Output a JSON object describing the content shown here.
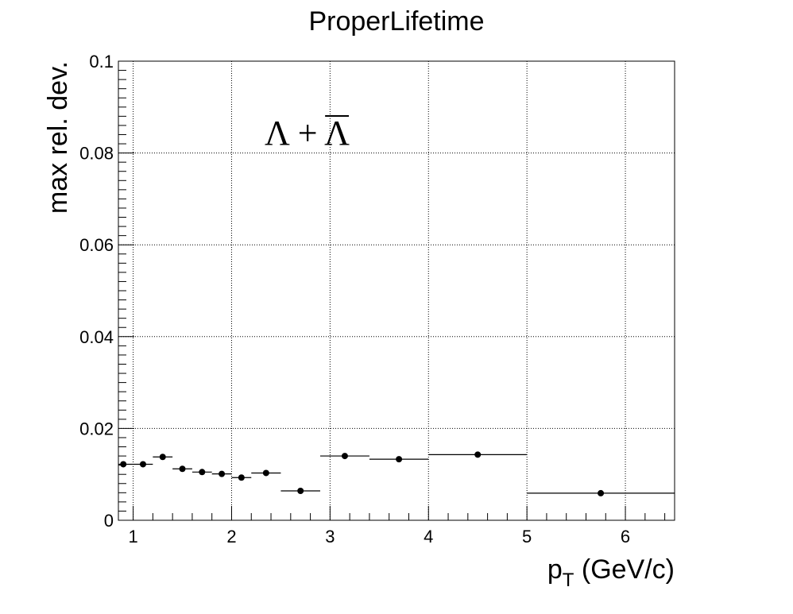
{
  "chart_data": {
    "type": "scatter",
    "title": "ProperLifetime",
    "xlabel_main": "p",
    "xlabel_sub": "T",
    "xlabel_unit": " (GeV/c)",
    "ylabel": "max rel. dev.",
    "annotation": "Λ + Λ",
    "xlim": [
      0.85,
      6.5
    ],
    "ylim": [
      0,
      0.1
    ],
    "grid": true,
    "x_ticks": [
      {
        "v": 1,
        "label": "1"
      },
      {
        "v": 2,
        "label": "2"
      },
      {
        "v": 3,
        "label": "3"
      },
      {
        "v": 4,
        "label": "4"
      },
      {
        "v": 5,
        "label": "5"
      },
      {
        "v": 6,
        "label": "6"
      }
    ],
    "y_ticks": [
      {
        "v": 0,
        "label": "0"
      },
      {
        "v": 0.02,
        "label": "0.02"
      },
      {
        "v": 0.04,
        "label": "0.04"
      },
      {
        "v": 0.06,
        "label": "0.06"
      },
      {
        "v": 0.08,
        "label": "0.08"
      },
      {
        "v": 0.1,
        "label": "0.1"
      }
    ],
    "points": [
      {
        "xlow": 0.8,
        "xhigh": 1.0,
        "y": 0.0122
      },
      {
        "xlow": 1.0,
        "xhigh": 1.2,
        "y": 0.0122
      },
      {
        "xlow": 1.2,
        "xhigh": 1.4,
        "y": 0.0138
      },
      {
        "xlow": 1.4,
        "xhigh": 1.6,
        "y": 0.0112
      },
      {
        "xlow": 1.6,
        "xhigh": 1.8,
        "y": 0.0105
      },
      {
        "xlow": 1.8,
        "xhigh": 2.0,
        "y": 0.0101
      },
      {
        "xlow": 2.0,
        "xhigh": 2.2,
        "y": 0.0093
      },
      {
        "xlow": 2.2,
        "xhigh": 2.5,
        "y": 0.0103
      },
      {
        "xlow": 2.5,
        "xhigh": 2.9,
        "y": 0.0064
      },
      {
        "xlow": 2.9,
        "xhigh": 3.4,
        "y": 0.014
      },
      {
        "xlow": 3.4,
        "xhigh": 4.0,
        "y": 0.0133
      },
      {
        "xlow": 4.0,
        "xhigh": 5.0,
        "y": 0.0143
      },
      {
        "xlow": 5.0,
        "xhigh": 6.5,
        "y": 0.0059
      }
    ]
  }
}
